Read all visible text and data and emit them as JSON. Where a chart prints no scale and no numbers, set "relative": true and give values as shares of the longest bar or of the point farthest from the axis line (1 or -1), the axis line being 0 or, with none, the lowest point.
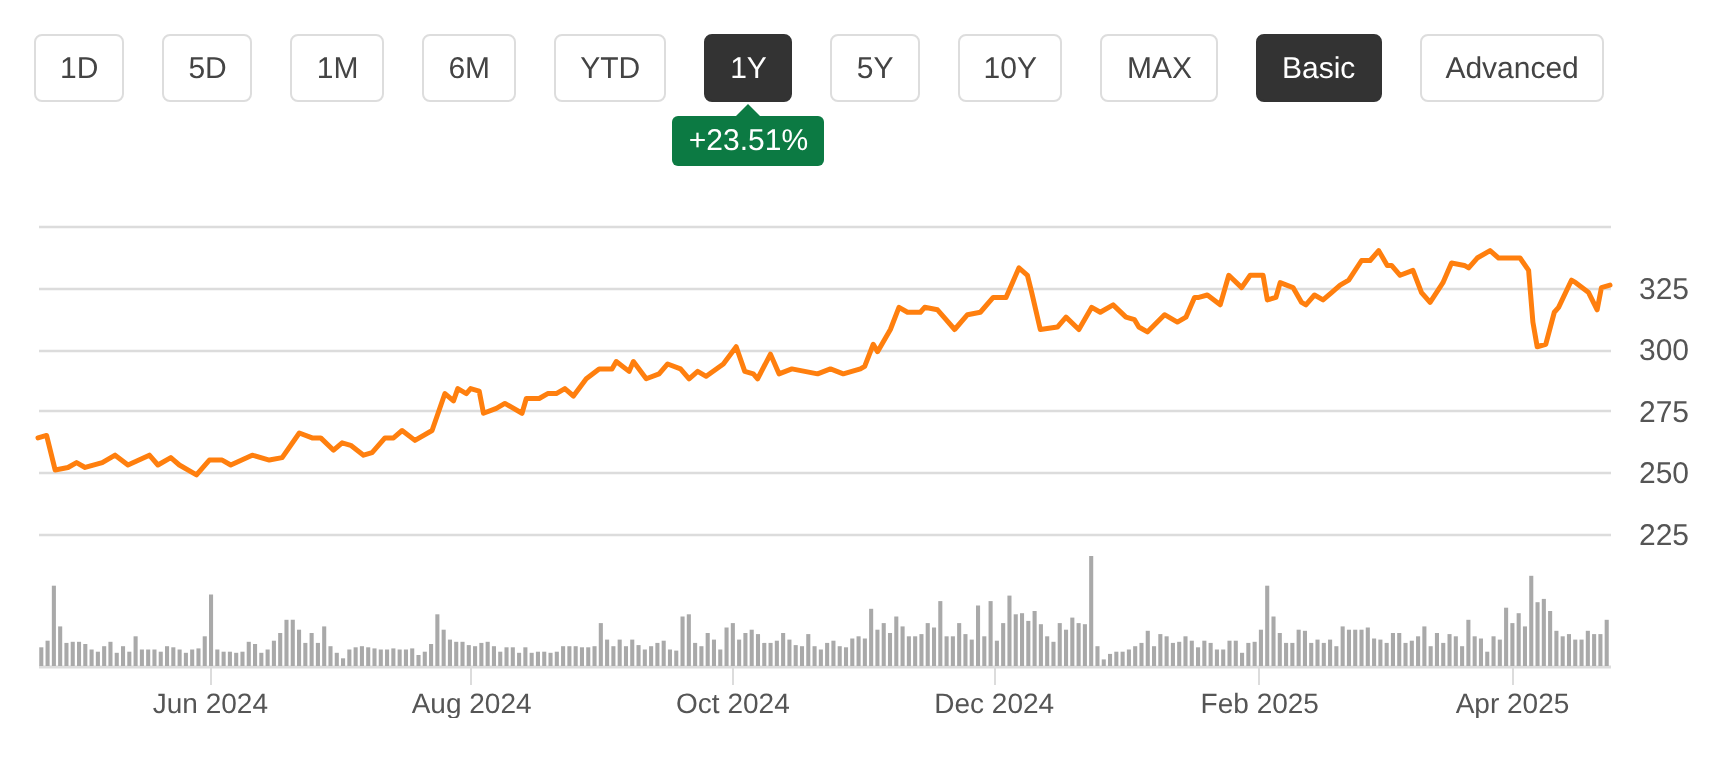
{
  "chart_data": [
    {
      "type": "line",
      "color": "#ff7f0e",
      "annotations": [
        "1D",
        "5D",
        "1M",
        "6M",
        "YTD",
        "1Y",
        "5Y",
        "10Y",
        "MAX",
        "Basic",
        "Advanced",
        "+23.51%"
      ],
      "x": [
        "2024-04-22",
        "2024-04-24",
        "2024-04-26",
        "2024-04-29",
        "2024-05-01",
        "2024-05-03",
        "2024-05-07",
        "2024-05-10",
        "2024-05-13",
        "2024-05-18",
        "2024-05-20",
        "2024-05-23",
        "2024-05-25",
        "2024-05-29",
        "2024-06-01",
        "2024-06-04",
        "2024-06-06",
        "2024-06-11",
        "2024-06-15",
        "2024-06-18",
        "2024-06-22",
        "2024-06-25",
        "2024-06-27",
        "2024-06-30",
        "2024-07-02",
        "2024-07-04",
        "2024-07-07",
        "2024-07-09",
        "2024-07-12",
        "2024-07-14",
        "2024-07-16",
        "2024-07-19",
        "2024-07-23",
        "2024-07-26",
        "2024-07-28",
        "2024-07-29",
        "2024-07-31",
        "2024-08-01",
        "2024-08-03",
        "2024-08-04",
        "2024-08-07",
        "2024-08-09",
        "2024-08-13",
        "2024-08-14",
        "2024-08-17",
        "2024-08-19",
        "2024-08-21",
        "2024-08-23",
        "2024-08-25",
        "2024-08-28",
        "2024-08-31",
        "2024-09-03",
        "2024-09-04",
        "2024-09-07",
        "2024-09-08",
        "2024-09-11",
        "2024-09-14",
        "2024-09-16",
        "2024-09-19",
        "2024-09-21",
        "2024-09-23",
        "2024-09-25",
        "2024-09-29",
        "2024-10-02",
        "2024-10-04",
        "2024-10-06",
        "2024-10-07",
        "2024-10-10",
        "2024-10-12",
        "2024-10-15",
        "2024-10-18",
        "2024-10-21",
        "2024-10-24",
        "2024-10-27",
        "2024-10-31",
        "2024-11-01",
        "2024-11-03",
        "2024-11-04",
        "2024-11-07",
        "2024-11-09",
        "2024-11-11",
        "2024-11-14",
        "2024-11-15",
        "2024-11-18",
        "2024-11-20",
        "2024-11-22",
        "2024-11-25",
        "2024-11-28",
        "2024-12-01",
        "2024-12-04",
        "2024-12-07",
        "2024-12-09",
        "2024-12-10",
        "2024-12-12",
        "2024-12-16",
        "2024-12-18",
        "2024-12-21",
        "2024-12-24",
        "2024-12-26",
        "2024-12-29",
        "2025-01-01",
        "2025-01-03",
        "2025-01-04",
        "2025-01-06",
        "2025-01-10",
        "2025-01-13",
        "2025-01-15",
        "2025-01-17",
        "2025-01-18",
        "2025-01-20",
        "2025-01-23",
        "2025-01-25",
        "2025-01-28",
        "2025-01-30",
        "2025-02-02",
        "2025-02-03",
        "2025-02-05",
        "2025-02-06",
        "2025-02-09",
        "2025-02-11",
        "2025-02-12",
        "2025-02-14",
        "2025-02-16",
        "2025-02-18",
        "2025-02-20",
        "2025-02-22",
        "2025-02-25",
        "2025-02-27",
        "2025-03-01",
        "2025-03-03",
        "2025-03-04",
        "2025-03-06",
        "2025-03-09",
        "2025-03-11",
        "2025-03-13",
        "2025-03-16",
        "2025-03-18",
        "2025-03-21",
        "2025-03-22",
        "2025-03-24",
        "2025-03-27",
        "2025-03-29",
        "2025-04-02",
        "2025-04-03",
        "2025-04-05",
        "2025-04-06",
        "2025-04-07",
        "2025-04-09",
        "2025-04-11",
        "2025-04-12",
        "2025-04-15",
        "2025-04-16",
        "2025-04-19",
        "2025-04-21",
        "2025-04-22",
        "2025-04-24"
      ],
      "values": [
        264,
        265,
        251,
        252,
        254,
        252,
        254,
        257,
        253,
        257,
        253,
        256,
        253,
        249,
        255,
        255,
        253,
        257,
        255,
        256,
        266,
        264,
        264,
        259,
        262,
        261,
        257,
        258,
        264,
        264,
        267,
        263,
        267,
        282,
        279,
        284,
        282,
        284,
        283,
        274,
        276,
        278,
        274,
        280,
        280,
        282,
        282,
        284,
        281,
        288,
        292,
        292,
        295,
        291,
        295,
        288,
        290,
        294,
        292,
        288,
        291,
        289,
        294,
        301,
        291,
        290,
        288,
        298,
        290,
        292,
        291,
        290,
        292,
        290,
        292,
        293,
        302,
        299,
        308,
        317,
        315,
        315,
        317,
        316,
        312,
        308,
        314,
        315,
        321,
        321,
        333,
        330,
        323,
        308,
        309,
        313,
        308,
        317,
        315,
        318,
        313,
        312,
        309,
        307,
        314,
        311,
        313,
        321,
        321,
        322,
        318,
        330,
        325,
        330,
        330,
        320,
        321,
        327,
        325,
        319,
        318,
        322,
        320,
        323,
        326,
        328,
        336,
        336,
        340,
        334,
        334,
        330,
        332,
        323,
        319,
        327,
        335,
        334,
        333,
        337,
        340,
        337,
        337,
        337,
        332,
        311,
        301,
        302,
        315,
        317,
        328,
        327,
        323,
        316,
        325,
        326
      ],
      "xlim": [
        "2024-04-22",
        "2025-04-24"
      ],
      "ylim": [
        225,
        350
      ],
      "yticks": [
        225,
        250,
        275,
        300,
        325,
        {
          "value": 350,
          "label": null
        }
      ],
      "xticks": [
        {
          "value": "2024-06-01",
          "label": "Jun 2024"
        },
        {
          "value": "2024-08-01",
          "label": "Aug 2024"
        },
        {
          "value": "2024-10-01",
          "label": "Oct 2024"
        },
        {
          "value": "2024-12-01",
          "label": "Dec 2024"
        },
        {
          "value": "2025-02-01",
          "label": "Feb 2025"
        },
        {
          "value": "2025-04-01",
          "label": "Apr 2025"
        }
      ],
      "grid": "y"
    },
    {
      "type": "bar",
      "relative": true,
      "color": "#a9a9a9",
      "categories": [
        null,
        null,
        null,
        null,
        null,
        null,
        null,
        null,
        null,
        null,
        null,
        null,
        null,
        null,
        null,
        null,
        null,
        null,
        null,
        null,
        null,
        null,
        null,
        null,
        null,
        null,
        null,
        null,
        null,
        null,
        null,
        null,
        null,
        null,
        null,
        null,
        null,
        null,
        null,
        null,
        null,
        null,
        null,
        null,
        null,
        null,
        null,
        null,
        null,
        null,
        null,
        null,
        null,
        null,
        null,
        null,
        null,
        null,
        null,
        null,
        null,
        null,
        null,
        null,
        null,
        null,
        null,
        null,
        null,
        null,
        null,
        null,
        null,
        null,
        null,
        null,
        null,
        null,
        null,
        null,
        null,
        null,
        null,
        null,
        null,
        null,
        null,
        null,
        null,
        null,
        null,
        null,
        null,
        null,
        null,
        null,
        null,
        null,
        null,
        null,
        null,
        null,
        null,
        null,
        null,
        null,
        null,
        null,
        null,
        null,
        null,
        null,
        null,
        null,
        null,
        null,
        null,
        null,
        null,
        null,
        null,
        null,
        null,
        null,
        null,
        null,
        null,
        null,
        null,
        null,
        null,
        null,
        null,
        null,
        null,
        null,
        null,
        null,
        null,
        null,
        null,
        null,
        null,
        null,
        null,
        null,
        null,
        null,
        null,
        null,
        null,
        null,
        null,
        null,
        null,
        null,
        null,
        null,
        null,
        null,
        null,
        null,
        null,
        null,
        null,
        null,
        null,
        null,
        null,
        null,
        null,
        null,
        null,
        null,
        null,
        null,
        null,
        null,
        null,
        null,
        null,
        null,
        null,
        null,
        null,
        null,
        null,
        null,
        null,
        null,
        null,
        null,
        null,
        null,
        null,
        null,
        null,
        null,
        null,
        null,
        null,
        null,
        null,
        null,
        null,
        null,
        null,
        null,
        null,
        null,
        null,
        null,
        null,
        null,
        null,
        null,
        null,
        null,
        null,
        null,
        null,
        null,
        null,
        null,
        null,
        null,
        null,
        null,
        null,
        null,
        null,
        null,
        null,
        null,
        null,
        null,
        null,
        null,
        null,
        null,
        null,
        null,
        null,
        null,
        null,
        null,
        null,
        null,
        null,
        null
      ],
      "values": [
        0.17,
        0.23,
        0.73,
        0.36,
        0.21,
        0.22,
        0.22,
        0.2,
        0.15,
        0.13,
        0.18,
        0.22,
        0.12,
        0.18,
        0.13,
        0.27,
        0.15,
        0.15,
        0.15,
        0.13,
        0.18,
        0.17,
        0.15,
        0.12,
        0.15,
        0.16,
        0.27,
        0.65,
        0.15,
        0.13,
        0.13,
        0.12,
        0.13,
        0.22,
        0.2,
        0.12,
        0.15,
        0.23,
        0.3,
        0.42,
        0.42,
        0.33,
        0.21,
        0.3,
        0.21,
        0.36,
        0.18,
        0.12,
        0.07,
        0.15,
        0.17,
        0.18,
        0.17,
        0.16,
        0.15,
        0.15,
        0.16,
        0.15,
        0.15,
        0.16,
        0.1,
        0.13,
        0.2,
        0.47,
        0.33,
        0.24,
        0.22,
        0.22,
        0.19,
        0.18,
        0.21,
        0.22,
        0.18,
        0.13,
        0.17,
        0.17,
        0.12,
        0.17,
        0.12,
        0.13,
        0.13,
        0.12,
        0.13,
        0.18,
        0.18,
        0.18,
        0.17,
        0.17,
        0.18,
        0.39,
        0.24,
        0.18,
        0.24,
        0.18,
        0.24,
        0.19,
        0.15,
        0.18,
        0.21,
        0.23,
        0.15,
        0.14,
        0.45,
        0.47,
        0.21,
        0.18,
        0.3,
        0.24,
        0.15,
        0.35,
        0.39,
        0.24,
        0.3,
        0.33,
        0.29,
        0.21,
        0.21,
        0.23,
        0.3,
        0.24,
        0.19,
        0.18,
        0.29,
        0.18,
        0.15,
        0.21,
        0.23,
        0.18,
        0.17,
        0.25,
        0.27,
        0.25,
        0.52,
        0.33,
        0.39,
        0.3,
        0.45,
        0.36,
        0.27,
        0.27,
        0.29,
        0.39,
        0.35,
        0.59,
        0.27,
        0.27,
        0.39,
        0.29,
        0.24,
        0.55,
        0.27,
        0.59,
        0.23,
        0.39,
        0.64,
        0.47,
        0.48,
        0.41,
        0.5,
        0.38,
        0.27,
        0.22,
        0.39,
        0.33,
        0.44,
        0.39,
        0.38,
        1,
        0.18,
        0.06,
        0.11,
        0.13,
        0.13,
        0.15,
        0.18,
        0.21,
        0.32,
        0.18,
        0.29,
        0.27,
        0.21,
        0.22,
        0.27,
        0.23,
        0.17,
        0.23,
        0.21,
        0.15,
        0.15,
        0.23,
        0.23,
        0.12,
        0.21,
        0.22,
        0.33,
        0.73,
        0.45,
        0.3,
        0.21,
        0.21,
        0.33,
        0.32,
        0.21,
        0.24,
        0.21,
        0.24,
        0.18,
        0.36,
        0.33,
        0.33,
        0.33,
        0.35,
        0.25,
        0.24,
        0.21,
        0.3,
        0.3,
        0.21,
        0.23,
        0.27,
        0.36,
        0.18,
        0.3,
        0.21,
        0.29,
        0.27,
        0.18,
        0.42,
        0.27,
        0.25,
        0.13,
        0.27,
        0.24,
        0.53,
        0.39,
        0.48,
        0.36,
        0.82,
        0.58,
        0.61,
        0.5,
        0.32,
        0.27,
        0.29,
        0.24,
        0.24,
        0.32,
        0.29,
        0.29,
        0.42
      ]
    }
  ]
}
